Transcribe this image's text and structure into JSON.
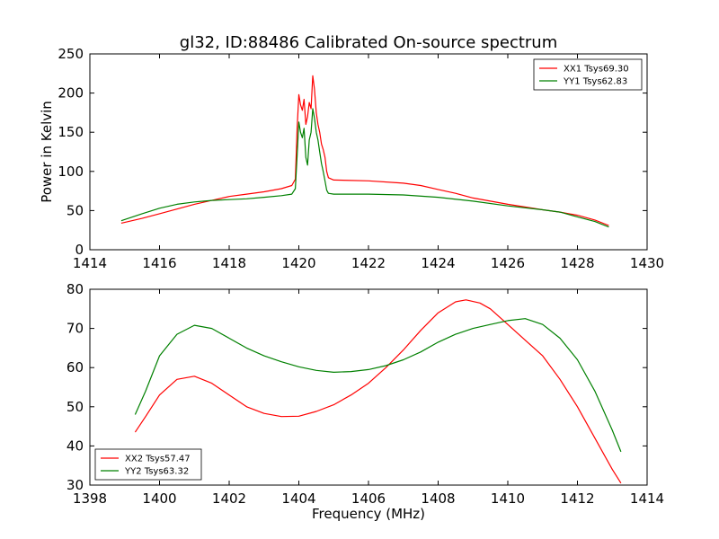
{
  "figure_title": "gl32, ID:88486 Calibrated On-source spectrum",
  "chart_data": [
    {
      "type": "line",
      "title": "gl32, ID:88486 Calibrated On-source spectrum",
      "xlabel": "",
      "ylabel": "Power in Kelvin",
      "xlim": [
        1414,
        1430
      ],
      "ylim": [
        0,
        250
      ],
      "x_ticks": [
        1414,
        1416,
        1418,
        1420,
        1422,
        1424,
        1426,
        1428,
        1430
      ],
      "y_ticks": [
        0,
        50,
        100,
        150,
        200,
        250
      ],
      "legend_position": "top-right",
      "series": [
        {
          "name": "XX1 Tsys69.30",
          "color": "#ff0000",
          "points": [
            [
              1414.9,
              34
            ],
            [
              1415.5,
              40
            ],
            [
              1416,
              46
            ],
            [
              1416.5,
              52
            ],
            [
              1417,
              58
            ],
            [
              1417.5,
              63
            ],
            [
              1418,
              68
            ],
            [
              1418.5,
              71
            ],
            [
              1419,
              74
            ],
            [
              1419.5,
              78
            ],
            [
              1419.8,
              82
            ],
            [
              1419.9,
              90
            ],
            [
              1419.95,
              155
            ],
            [
              1420.0,
              198
            ],
            [
              1420.05,
              185
            ],
            [
              1420.1,
              178
            ],
            [
              1420.15,
              192
            ],
            [
              1420.2,
              160
            ],
            [
              1420.25,
              170
            ],
            [
              1420.3,
              188
            ],
            [
              1420.35,
              180
            ],
            [
              1420.4,
              222
            ],
            [
              1420.45,
              205
            ],
            [
              1420.5,
              175
            ],
            [
              1420.55,
              160
            ],
            [
              1420.6,
              150
            ],
            [
              1420.65,
              135
            ],
            [
              1420.7,
              128
            ],
            [
              1420.75,
              118
            ],
            [
              1420.8,
              100
            ],
            [
              1420.85,
              92
            ],
            [
              1421,
              89
            ],
            [
              1422,
              88
            ],
            [
              1423,
              85
            ],
            [
              1423.5,
              82
            ],
            [
              1424,
              77
            ],
            [
              1424.5,
              72
            ],
            [
              1425,
              66
            ],
            [
              1426,
              58
            ],
            [
              1427,
              51
            ],
            [
              1427.5,
              48
            ],
            [
              1428,
              44
            ],
            [
              1428.5,
              38
            ],
            [
              1428.9,
              31
            ]
          ]
        },
        {
          "name": "YY1 Tsys62.83",
          "color": "#008000",
          "points": [
            [
              1414.9,
              37
            ],
            [
              1415.5,
              46
            ],
            [
              1416,
              53
            ],
            [
              1416.5,
              58
            ],
            [
              1417,
              61
            ],
            [
              1417.5,
              63
            ],
            [
              1418,
              64
            ],
            [
              1418.5,
              65
            ],
            [
              1419,
              67
            ],
            [
              1419.5,
              69
            ],
            [
              1419.8,
              71
            ],
            [
              1419.9,
              78
            ],
            [
              1419.95,
              120
            ],
            [
              1420.0,
              163
            ],
            [
              1420.05,
              150
            ],
            [
              1420.1,
              143
            ],
            [
              1420.15,
              155
            ],
            [
              1420.2,
              118
            ],
            [
              1420.25,
              108
            ],
            [
              1420.3,
              140
            ],
            [
              1420.35,
              150
            ],
            [
              1420.4,
              180
            ],
            [
              1420.45,
              168
            ],
            [
              1420.5,
              150
            ],
            [
              1420.55,
              140
            ],
            [
              1420.6,
              125
            ],
            [
              1420.65,
              110
            ],
            [
              1420.7,
              100
            ],
            [
              1420.75,
              88
            ],
            [
              1420.8,
              76
            ],
            [
              1420.85,
              72
            ],
            [
              1421,
              71
            ],
            [
              1422,
              71
            ],
            [
              1423,
              70
            ],
            [
              1424,
              67
            ],
            [
              1425,
              62
            ],
            [
              1426,
              56
            ],
            [
              1427,
              51
            ],
            [
              1427.5,
              48
            ],
            [
              1428,
              42
            ],
            [
              1428.5,
              36
            ],
            [
              1428.9,
              29
            ]
          ]
        }
      ]
    },
    {
      "type": "line",
      "title": "",
      "xlabel": "Frequency (MHz)",
      "ylabel": "",
      "xlim": [
        1398,
        1414
      ],
      "ylim": [
        30,
        80
      ],
      "x_ticks": [
        1398,
        1400,
        1402,
        1404,
        1406,
        1408,
        1410,
        1412,
        1414
      ],
      "y_ticks": [
        30,
        40,
        50,
        60,
        70,
        80
      ],
      "legend_position": "bottom-left",
      "series": [
        {
          "name": "XX2 Tsys57.47",
          "color": "#ff0000",
          "points": [
            [
              1399.3,
              43.5
            ],
            [
              1399.6,
              47.5
            ],
            [
              1400,
              53
            ],
            [
              1400.5,
              57
            ],
            [
              1401,
              57.8
            ],
            [
              1401.5,
              56
            ],
            [
              1402,
              53
            ],
            [
              1402.5,
              50
            ],
            [
              1403,
              48.3
            ],
            [
              1403.5,
              47.5
            ],
            [
              1404,
              47.6
            ],
            [
              1404.5,
              48.8
            ],
            [
              1405,
              50.5
            ],
            [
              1405.5,
              53
            ],
            [
              1406,
              56
            ],
            [
              1406.5,
              60
            ],
            [
              1407,
              64.5
            ],
            [
              1407.5,
              69.5
            ],
            [
              1408,
              74
            ],
            [
              1408.5,
              76.8
            ],
            [
              1408.8,
              77.3
            ],
            [
              1409.2,
              76.5
            ],
            [
              1409.5,
              75
            ],
            [
              1410,
              71
            ],
            [
              1410.5,
              67
            ],
            [
              1411,
              63
            ],
            [
              1411.5,
              57
            ],
            [
              1412,
              50
            ],
            [
              1412.5,
              42
            ],
            [
              1413,
              34
            ],
            [
              1413.25,
              30.5
            ]
          ]
        },
        {
          "name": "YY2 Tsys63.32",
          "color": "#008000",
          "points": [
            [
              1399.3,
              48
            ],
            [
              1399.6,
              54
            ],
            [
              1400,
              63
            ],
            [
              1400.5,
              68.5
            ],
            [
              1401,
              70.8
            ],
            [
              1401.5,
              70
            ],
            [
              1402,
              67.5
            ],
            [
              1402.5,
              65
            ],
            [
              1403,
              63
            ],
            [
              1403.5,
              61.5
            ],
            [
              1404,
              60.2
            ],
            [
              1404.5,
              59.3
            ],
            [
              1405,
              58.8
            ],
            [
              1405.5,
              59
            ],
            [
              1406,
              59.5
            ],
            [
              1406.5,
              60.5
            ],
            [
              1407,
              62
            ],
            [
              1407.5,
              64
            ],
            [
              1408,
              66.5
            ],
            [
              1408.5,
              68.5
            ],
            [
              1409,
              70
            ],
            [
              1409.5,
              71
            ],
            [
              1410,
              72
            ],
            [
              1410.5,
              72.5
            ],
            [
              1411,
              71
            ],
            [
              1411.5,
              67.5
            ],
            [
              1412,
              62
            ],
            [
              1412.5,
              54
            ],
            [
              1413,
              44
            ],
            [
              1413.25,
              38.5
            ]
          ]
        }
      ]
    }
  ]
}
